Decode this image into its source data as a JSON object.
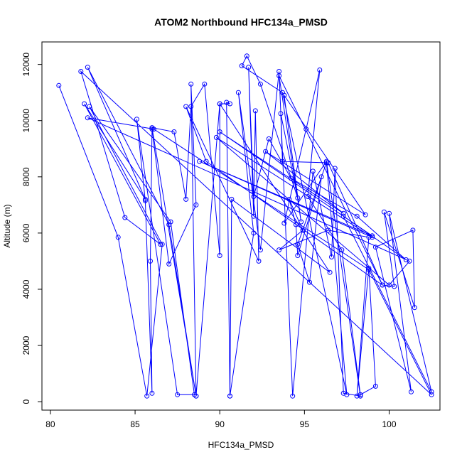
{
  "chart_data": {
    "type": "scatter",
    "title": "ATOM2 Northbound HFC134a_PMSD",
    "xlabel": "HFC134a_PMSD",
    "ylabel": "Altitude (m)",
    "xlim": [
      79.5,
      103.0
    ],
    "ylim": [
      -300,
      12800
    ],
    "xticks": [
      80,
      85,
      90,
      95,
      100
    ],
    "yticks": [
      0,
      2000,
      4000,
      6000,
      8000,
      10000,
      12000
    ],
    "series_color": "#0000ff",
    "marker": "open-circle",
    "connected": true,
    "points": [
      [
        80.5,
        11250
      ],
      [
        84.0,
        5850
      ],
      [
        85.7,
        200
      ],
      [
        86.6,
        5600
      ],
      [
        82.3,
        10500
      ],
      [
        87.1,
        6400
      ],
      [
        88.5,
        250
      ],
      [
        87.5,
        250
      ],
      [
        85.1,
        10050
      ],
      [
        85.6,
        7150
      ],
      [
        86.0,
        300
      ],
      [
        85.9,
        5000
      ],
      [
        86.0,
        9700
      ],
      [
        87.0,
        4900
      ],
      [
        88.6,
        7000
      ],
      [
        88.3,
        11300
      ],
      [
        88.6,
        200
      ],
      [
        86.0,
        9750
      ],
      [
        87.3,
        9600
      ],
      [
        88.0,
        7200
      ],
      [
        88.3,
        10500
      ],
      [
        89.1,
        11300
      ],
      [
        90.0,
        5200
      ],
      [
        90.0,
        10600
      ],
      [
        90.6,
        10600
      ],
      [
        90.4,
        10650
      ],
      [
        90.6,
        200
      ],
      [
        92.0,
        6000
      ],
      [
        91.1,
        11000
      ],
      [
        92.4,
        5400
      ],
      [
        93.5,
        11750
      ],
      [
        94.3,
        200
      ],
      [
        95.5,
        8200
      ],
      [
        96.6,
        5150
      ],
      [
        96.8,
        8300
      ],
      [
        97.3,
        300
      ],
      [
        98.3,
        200
      ],
      [
        96.3,
        8550
      ],
      [
        93.8,
        6350
      ],
      [
        95.1,
        9700
      ],
      [
        95.9,
        11800
      ],
      [
        95.2,
        7300
      ],
      [
        97.2,
        5400
      ],
      [
        98.3,
        250
      ],
      [
        99.2,
        550
      ],
      [
        98.8,
        4750
      ],
      [
        98.1,
        200
      ],
      [
        98.8,
        5850
      ],
      [
        96.4,
        6100
      ],
      [
        93.5,
        5400
      ],
      [
        94.9,
        6100
      ],
      [
        94.1,
        7200
      ],
      [
        94.5,
        6300
      ],
      [
        94.6,
        5200
      ],
      [
        96.0,
        8000
      ],
      [
        95.3,
        4250
      ],
      [
        94.6,
        5600
      ],
      [
        96.3,
        8500
      ],
      [
        97.5,
        250
      ],
      [
        93.7,
        11000
      ],
      [
        91.3,
        11950
      ],
      [
        91.6,
        12300
      ],
      [
        92.4,
        11300
      ],
      [
        94.6,
        7250
      ],
      [
        93.6,
        10250
      ],
      [
        93.7,
        8550
      ],
      [
        96.4,
        8500
      ],
      [
        99.6,
        4150
      ],
      [
        100.3,
        4100
      ],
      [
        99.7,
        6750
      ],
      [
        101.5,
        3350
      ],
      [
        101.4,
        6100
      ],
      [
        99.2,
        5500
      ],
      [
        101.3,
        350
      ],
      [
        100.0,
        6700
      ],
      [
        102.5,
        350
      ],
      [
        97.3,
        6600
      ],
      [
        101.0,
        5050
      ],
      [
        98.1,
        6600
      ],
      [
        94.2,
        7950
      ],
      [
        92.9,
        9350
      ],
      [
        92.0,
        7300
      ],
      [
        91.7,
        11900
      ],
      [
        92.0,
        6600
      ],
      [
        92.1,
        10350
      ],
      [
        92.3,
        5000
      ],
      [
        88.0,
        10500
      ],
      [
        89.2,
        8550
      ],
      [
        99.6,
        4150
      ],
      [
        93.5,
        11600
      ],
      [
        94.8,
        6400
      ],
      [
        93.8,
        10900
      ],
      [
        98.6,
        6650
      ],
      [
        92.7,
        8900
      ],
      [
        97.3,
        6700
      ],
      [
        90.0,
        9600
      ],
      [
        99.0,
        5900
      ],
      [
        88.8,
        8550
      ],
      [
        99.0,
        5850
      ],
      [
        89.8,
        9400
      ],
      [
        100.0,
        4150
      ],
      [
        101.2,
        5000
      ],
      [
        82.2,
        10100
      ],
      [
        86.1,
        9700
      ],
      [
        98.8,
        4700
      ],
      [
        102.5,
        250
      ],
      [
        81.8,
        11750
      ],
      [
        84.4,
        6550
      ],
      [
        86.5,
        5600
      ],
      [
        82.0,
        10600
      ],
      [
        85.6,
        7200
      ],
      [
        82.2,
        11900
      ],
      [
        87.0,
        6300
      ],
      [
        88.6,
        200
      ],
      [
        90.0,
        10600
      ],
      [
        96.5,
        4600
      ],
      [
        90.7,
        7200
      ],
      [
        90.6,
        200
      ]
    ]
  }
}
